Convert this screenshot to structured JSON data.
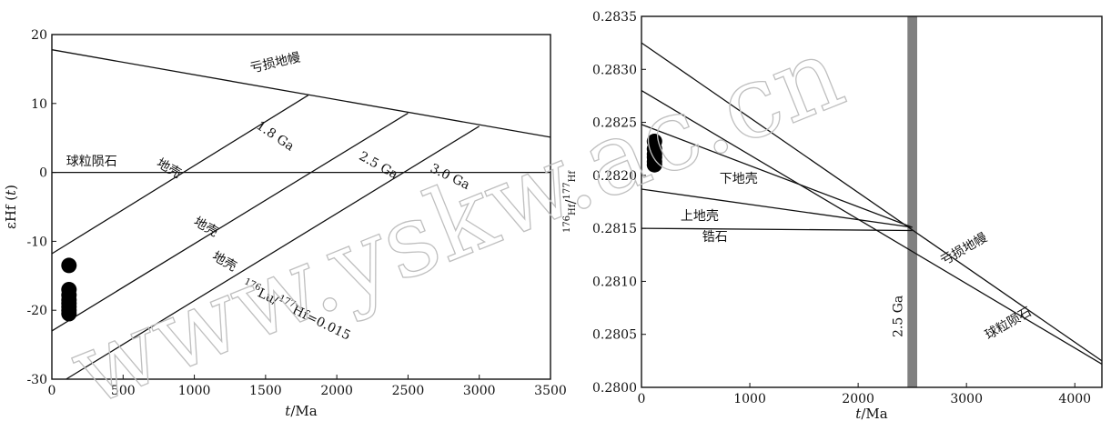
{
  "watermark": "www.yskw.ac.cn",
  "chart_data": [
    {
      "type": "line",
      "title": "",
      "xlabel": "t/Ma",
      "ylabel": "εHf (t)",
      "xlim": [
        0,
        3500
      ],
      "ylim": [
        -30,
        20
      ],
      "xticks": [
        0,
        500,
        1000,
        1500,
        2000,
        2500,
        3000,
        3500
      ],
      "yticks": [
        -30,
        -20,
        -10,
        0,
        10,
        20
      ],
      "xtick_labels": [
        "0",
        "500",
        "1000",
        "1500",
        "2000",
        "2500",
        "3000",
        "3500"
      ],
      "ytick_labels": [
        "-30",
        "-20",
        "-10",
        "0",
        "10",
        "20"
      ],
      "grid": false,
      "series": [
        {
          "name": "亏损地幔",
          "x": [
            0,
            3500
          ],
          "y": [
            17.8,
            5.1
          ]
        },
        {
          "name": "球粒陨石",
          "x": [
            0,
            3500
          ],
          "y": [
            0,
            0
          ]
        },
        {
          "name": "1.8 Ga",
          "x": [
            0,
            1800
          ],
          "y": [
            -11.8,
            11.2
          ]
        },
        {
          "name": "2.5 Ga",
          "x": [
            0,
            2500
          ],
          "y": [
            -23.0,
            8.6
          ]
        },
        {
          "name": "3.0 Ga",
          "x": [
            100,
            3000
          ],
          "y": [
            -30.0,
            6.7
          ]
        }
      ],
      "scatter": {
        "x": [
          120,
          120,
          120,
          120,
          120,
          120,
          120,
          120
        ],
        "y": [
          -13.5,
          -17.0,
          -17.8,
          -18.5,
          -19.0,
          -19.5,
          -20.0,
          -20.5
        ]
      },
      "annotations": [
        {
          "text": "亏损地幔",
          "x": 1400,
          "y": 14.5,
          "angle": 13
        },
        {
          "text": "1.8 Ga",
          "x": 1430,
          "y": 6.5,
          "angle": -34
        },
        {
          "text": "2.5 Ga",
          "x": 2150,
          "y": 2.0,
          "angle": -29
        },
        {
          "text": "3.0 Ga",
          "x": 2650,
          "y": 0.2,
          "angle": -26
        },
        {
          "text": "球粒陨石",
          "x": 100,
          "y": 1.0,
          "angle": 0
        },
        {
          "text": "地壳",
          "x": 730,
          "y": 1.0,
          "angle": -30
        },
        {
          "text": "地壳",
          "x": 990,
          "y": -7.5,
          "angle": -30
        },
        {
          "text": "地壳",
          "x": 1120,
          "y": -12.5,
          "angle": -30
        },
        {
          "text": "176Lu/177Hf=0.015",
          "x": 1330,
          "y": -16.8,
          "angle": -26
        }
      ]
    },
    {
      "type": "line",
      "title": "",
      "xlabel": "t/Ma",
      "ylabel": "176Hf/177Hf",
      "xlim": [
        0,
        4250
      ],
      "ylim": [
        0.28,
        0.2835
      ],
      "xticks": [
        0,
        1000,
        2000,
        3000,
        4000
      ],
      "yticks": [
        0.28,
        0.2805,
        0.281,
        0.2815,
        0.282,
        0.2825,
        0.283,
        0.2835
      ],
      "xtick_labels": [
        "0",
        "1000",
        "2000",
        "3000",
        "4000"
      ],
      "ytick_labels": [
        "0.2800",
        "0.2805",
        "0.2810",
        "0.2815",
        "0.2820",
        "0.2825",
        "0.2830",
        "0.2835"
      ],
      "grid": false,
      "series": [
        {
          "name": "亏损地幔",
          "x": [
            0,
            4250
          ],
          "y": [
            0.28325,
            0.28025
          ]
        },
        {
          "name": "球粒陨石",
          "x": [
            0,
            4250
          ],
          "y": [
            0.2828,
            0.28022
          ]
        },
        {
          "name": "下地壳",
          "x": [
            0,
            2500
          ],
          "y": [
            0.28248,
            0.28151
          ]
        },
        {
          "name": "上地壳",
          "x": [
            0,
            2500
          ],
          "y": [
            0.28187,
            0.28151
          ]
        },
        {
          "name": "锆石",
          "x": [
            0,
            2500
          ],
          "y": [
            0.2815,
            0.28148
          ]
        }
      ],
      "band": {
        "x": 2500,
        "width": 90,
        "label": "2.5 Ga"
      },
      "scatter": {
        "x": [
          120,
          120,
          120,
          120,
          120,
          120
        ],
        "y": [
          0.28232,
          0.28225,
          0.2822,
          0.28217,
          0.28213,
          0.2821
        ]
      },
      "annotations": [
        {
          "text": "下地壳",
          "x": 720,
          "y": 0.28193,
          "angle": 0
        },
        {
          "text": "上地壳",
          "x": 360,
          "y": 0.28158,
          "angle": 0
        },
        {
          "text": "锆石",
          "x": 560,
          "y": 0.28138,
          "angle": 0
        },
        {
          "text": "亏损地幔",
          "x": 2790,
          "y": 0.28115,
          "angle": 30
        },
        {
          "text": "球粒陨石",
          "x": 3200,
          "y": 0.28045,
          "angle": 30
        }
      ]
    }
  ]
}
